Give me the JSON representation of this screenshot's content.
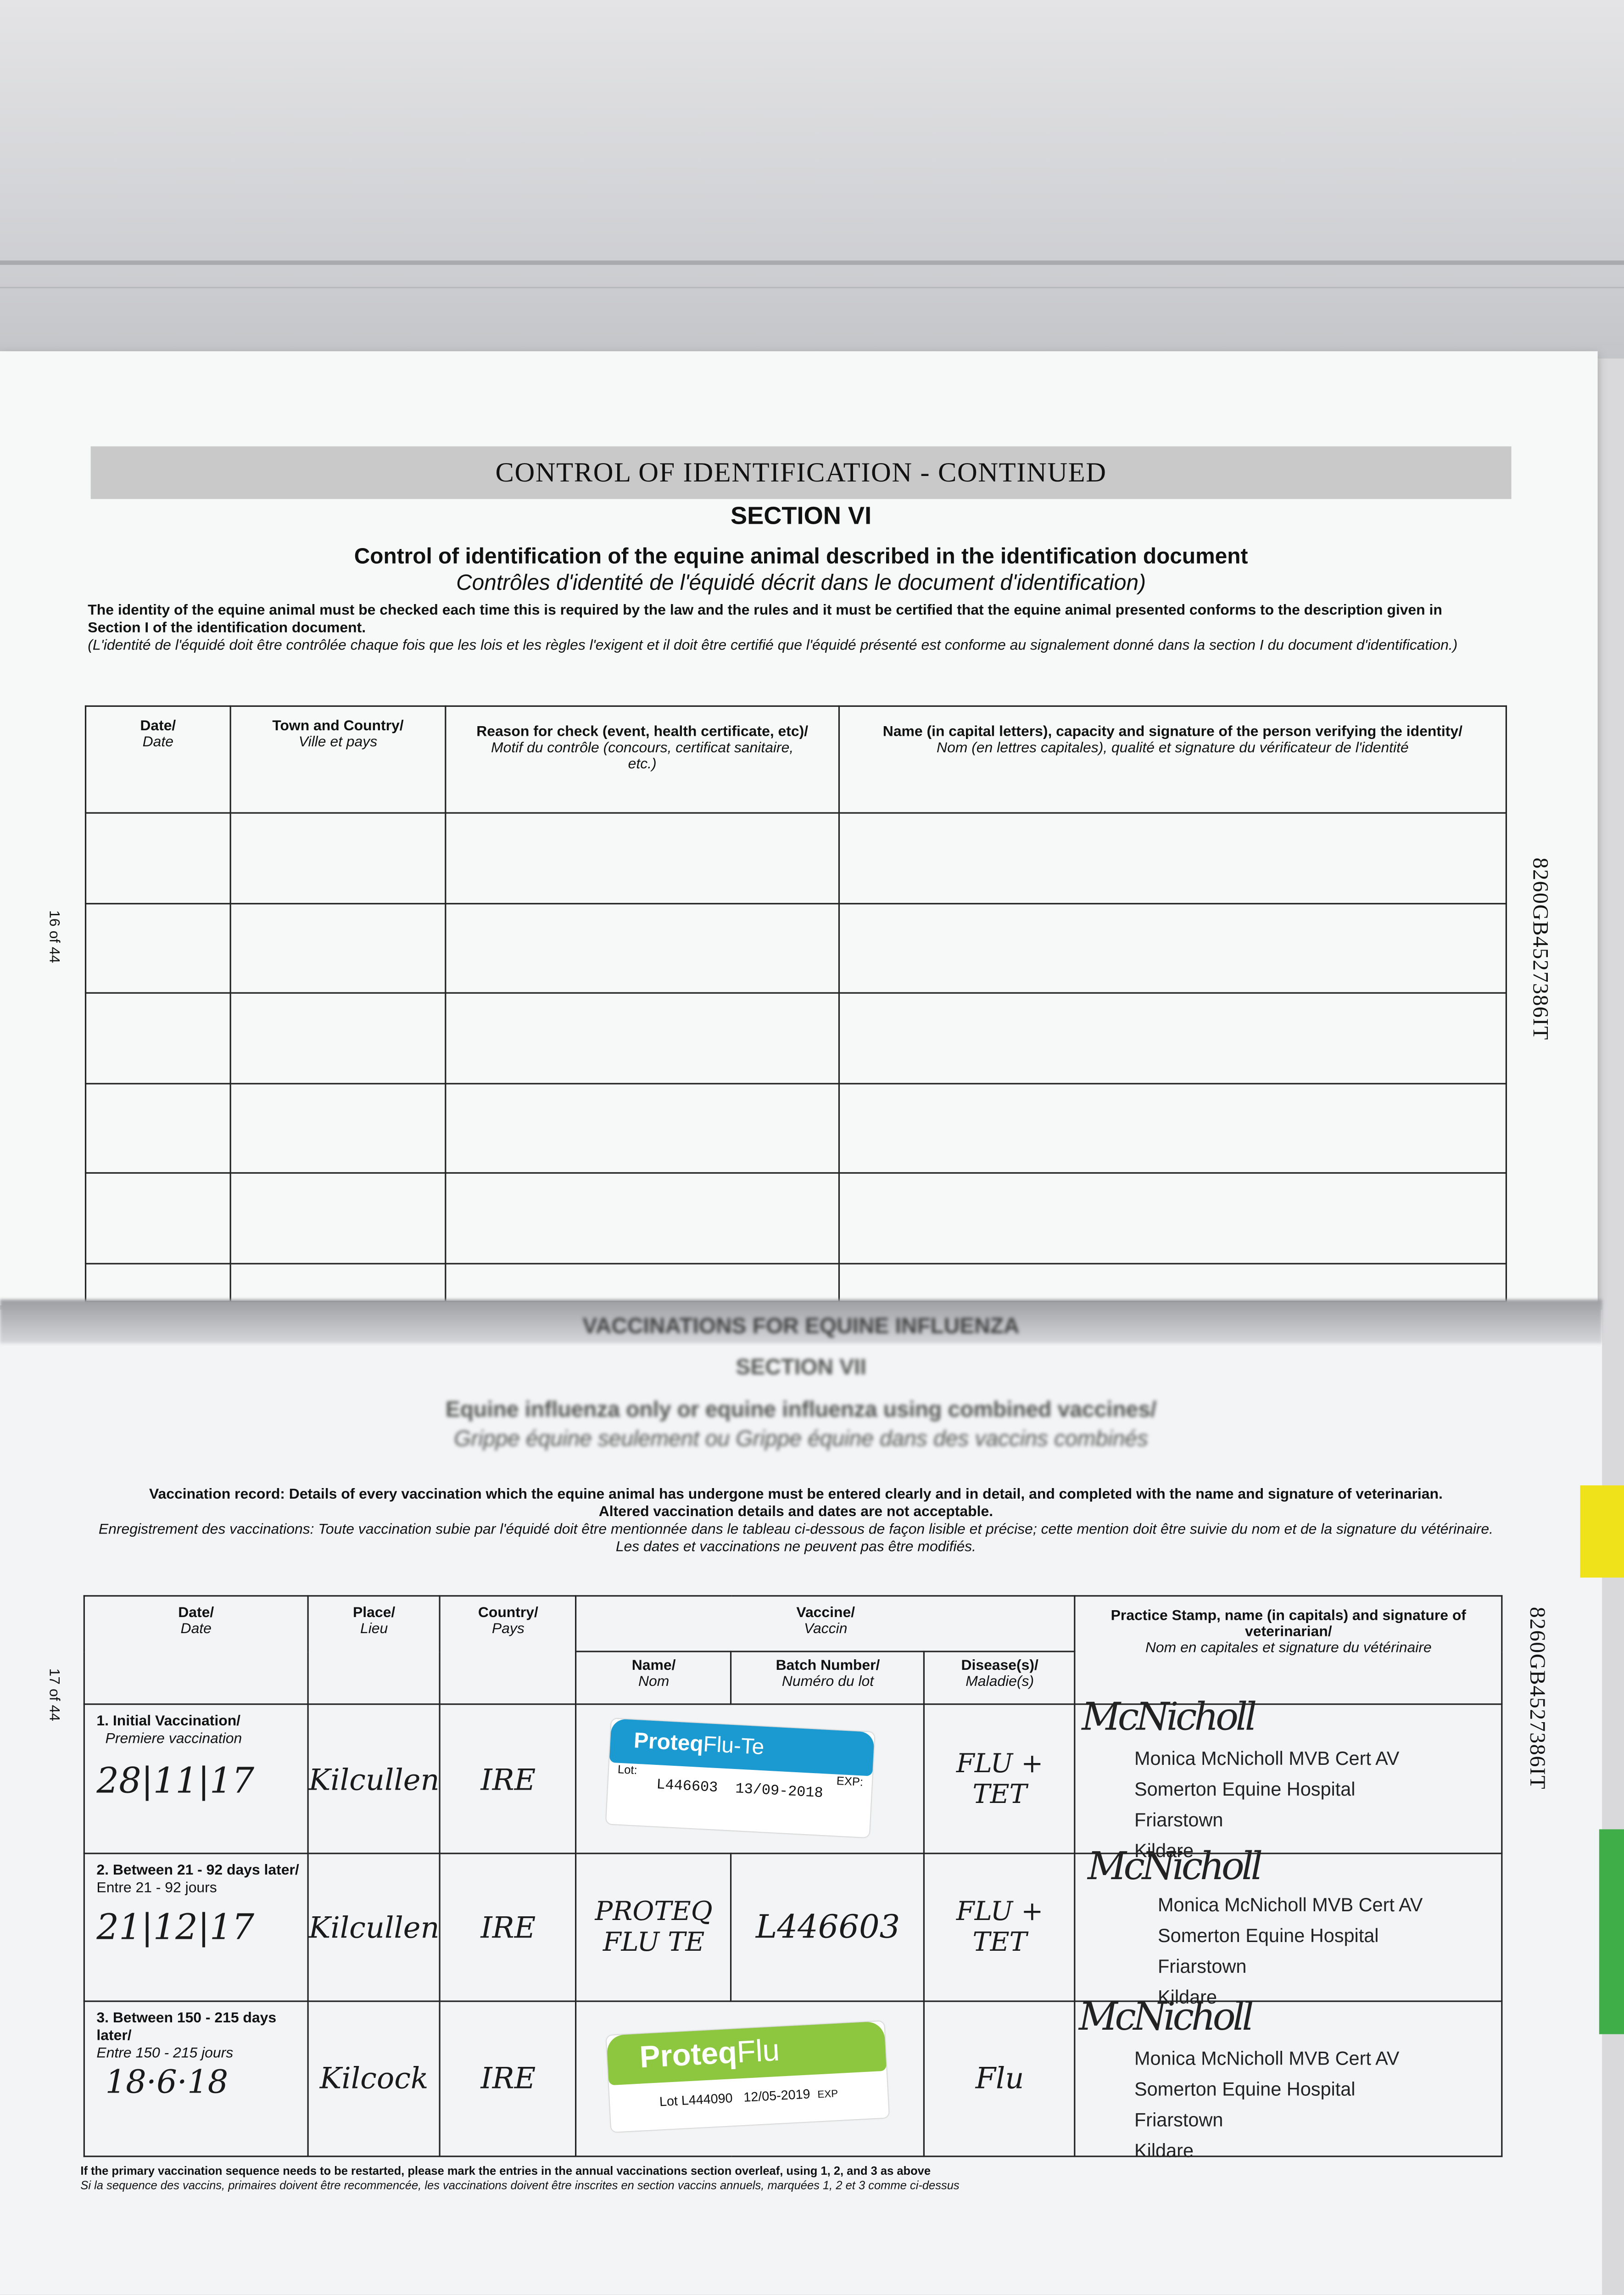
{
  "upper_page": {
    "banner": "CONTROL OF IDENTIFICATION - CONTINUED",
    "section": "SECTION VI",
    "title": "Control of identification of the equine animal described in the identification document",
    "title_fr": "Contrôles d'identité de l'équidé décrit dans le document d'identification)",
    "para_en": "The identity of the equine animal must be checked each time this is required by the law and the rules and it must be certified that the equine animal presented conforms to the description given in Section I of the identification document.",
    "para_fr": "(L'identité de l'équidé doit être contrôlée chaque fois que les lois et les règles l'exigent et il doit être certifié que l'équidé présenté est conforme au signalement donné dans la section I du document d'identification.)",
    "page_number": "16 of 44",
    "serial": "8260GB4527386IT",
    "columns": [
      {
        "en": "Date/",
        "fr": "Date"
      },
      {
        "en": "Town and Country/",
        "fr": "Ville et pays"
      },
      {
        "en": "Reason for check (event, health certificate, etc)/",
        "fr": "Motif du contrôle (concours, certificat sanitaire, etc.)"
      },
      {
        "en": "Name (in capital letters), capacity and signature of the person verifying the identity/",
        "fr": "Nom (en lettres capitales), qualité et signature du vérificateur de l'identité"
      }
    ],
    "empty_rows": 6
  },
  "lower_page": {
    "banner": "VACCINATIONS FOR EQUINE INFLUENZA",
    "section": "SECTION VII",
    "title": "Equine influenza only or equine influenza using combined vaccines/",
    "title_fr": "Grippe équine seulement ou Grippe équine dans des vaccins combinés",
    "para_en_label": "Vaccination record:",
    "para_en": "Details of every vaccination which the equine animal has undergone must be entered clearly and in detail, and completed with the name and signature of veterinarian.",
    "para_en2": "Altered vaccination details and dates are not acceptable.",
    "para_fr": "Enregistrement des vaccinations: Toute vaccination subie par l'équidé doit être mentionnée dans le tableau ci-dessous de façon lisible et précise; cette mention doit être suivie du nom et de la signature du vétérinaire. Les dates et vaccinations ne peuvent pas être modifiés.",
    "page_number": "17 of 44",
    "serial": "8260GB4527386IT",
    "headers": {
      "date": {
        "en": "Date/",
        "fr": "Date"
      },
      "place": {
        "en": "Place/",
        "fr": "Lieu"
      },
      "country": {
        "en": "Country/",
        "fr": "Pays"
      },
      "vaccine": {
        "en": "Vaccine/",
        "fr": "Vaccin"
      },
      "name": {
        "en": "Name/",
        "fr": "Nom"
      },
      "batch": {
        "en": "Batch Number/",
        "fr": "Numéro du lot"
      },
      "disease": {
        "en": "Disease(s)/",
        "fr": "Maladie(s)"
      },
      "vet": {
        "en": "Practice Stamp, name (in capitals) and signature of veterinarian/",
        "fr": "Nom en capitales et signature du vétérinaire"
      }
    },
    "rows": [
      {
        "label": "1. Initial Vaccination/",
        "label_fr": "Premiere vaccination",
        "date": "28|11|17",
        "place": "Kilcullen",
        "country": "IRE",
        "sticker": {
          "brand": "Proteq",
          "product": "Flu-Te",
          "lot_label": "Lot:",
          "lot": "L446603",
          "exp_label": "EXP:",
          "exp": "13/09-2018",
          "color": "#1b9ad1"
        },
        "disease": "FLU + TET",
        "signature": "McNicholl",
        "stamp": [
          "Monica McNicholl MVB Cert AV",
          "Somerton Equine Hospital",
          "Friarstown",
          "Kildare"
        ]
      },
      {
        "label": "2. Between 21 - 92 days later/",
        "label_fr": "Entre 21 - 92 jours",
        "date": "21|12|17",
        "place": "Kilcullen",
        "country": "IRE",
        "name": "PROTEQ FLU TE",
        "batch": "L446603",
        "disease": "FLU + TET",
        "signature": "McNicholl",
        "stamp": [
          "Monica McNicholl MVB Cert AV",
          "Somerton Equine Hospital",
          "Friarstown",
          "Kildare"
        ]
      },
      {
        "label": "3. Between 150 - 215 days later/",
        "label_fr": "Entre 150 - 215 jours",
        "date": "18·6·18",
        "place": "Kilcock",
        "country": "IRE",
        "sticker": {
          "brand": "Proteq",
          "product": "Flu",
          "lot_label": "Lot",
          "lot": "L444090",
          "exp_label": "EXP",
          "exp": "12/05-2019",
          "color": "#8dc63f"
        },
        "disease": "Flu",
        "signature": "McNicholl",
        "stamp": [
          "Monica McNicholl MVB Cert AV",
          "Somerton Equine Hospital",
          "Friarstown",
          "Kildare"
        ]
      }
    ],
    "footnote_en": "If the primary vaccination sequence needs to be restarted, please mark the entries in the annual vaccinations section overleaf, using 1, 2, and 3 as above",
    "footnote_fr": "Si la sequence des vaccins, primaires doivent être recommencée, les vaccinations doivent être inscrites en section vaccins annuels, marquées 1, 2 et 3 comme ci-dessus"
  },
  "tabs": {
    "yellow": "#f0e21a",
    "green": "#3fae49"
  }
}
